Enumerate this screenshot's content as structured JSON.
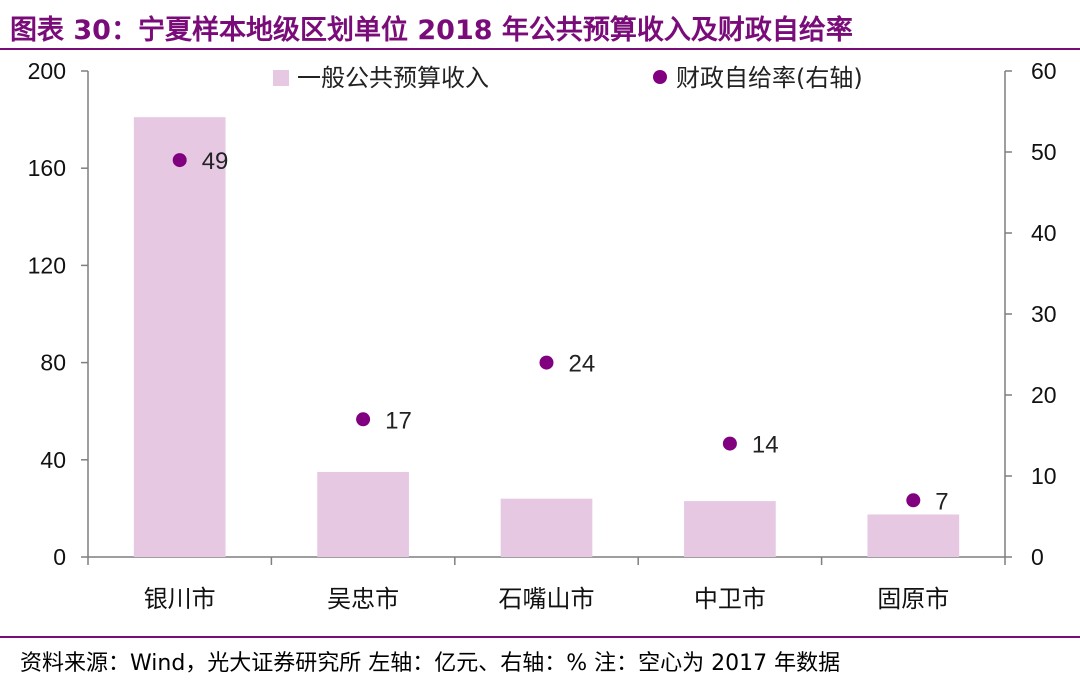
{
  "figure_title": "图表 30：宁夏样本地级区划单位 2018 年公共预算收入及财政自给率",
  "source_note": "资料来源：Wind，光大证券研究所   左轴：亿元、右轴：%   注：空心为 2017 年数据",
  "colors": {
    "bar": "#e6c8e3",
    "dot": "#800080",
    "title": "#7a0c7a",
    "axis": "#7f7f7f"
  },
  "chart_data": {
    "type": "bar",
    "categories": [
      "银川市",
      "吴忠市",
      "石嘴山市",
      "中卫市",
      "固原市"
    ],
    "series": [
      {
        "name": "一般公共预算收入",
        "axis": "left",
        "kind": "bar",
        "values": [
          181,
          35,
          24,
          23,
          17.5
        ]
      },
      {
        "name": "财政自给率(右轴)",
        "axis": "right",
        "kind": "scatter",
        "values": [
          49,
          17,
          24,
          14,
          7
        ]
      }
    ],
    "left_axis": {
      "min": 0,
      "max": 200,
      "ticks": [
        "0",
        "40",
        "80",
        "120",
        "160",
        "200"
      ]
    },
    "right_axis": {
      "min": 0,
      "max": 60,
      "ticks": [
        "0",
        "10",
        "20",
        "30",
        "40",
        "50",
        "60"
      ]
    },
    "legend": [
      "一般公共预算收入",
      "财政自给率(右轴)"
    ],
    "legend_position": "top",
    "grid": false
  }
}
